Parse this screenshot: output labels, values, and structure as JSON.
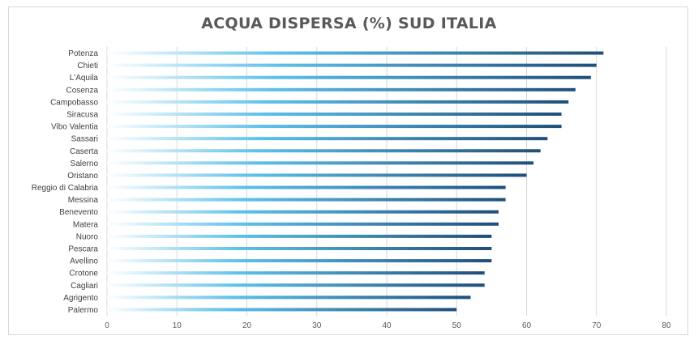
{
  "chart_data": {
    "type": "bar",
    "orientation": "horizontal",
    "title": "ACQUA DISPERSA (%) SUD ITALIA",
    "xlabel": "",
    "ylabel": "",
    "xlim": [
      0,
      80
    ],
    "x_ticks": [
      0,
      10,
      20,
      30,
      40,
      50,
      60,
      70,
      80
    ],
    "grid": "vertical",
    "legend": "none",
    "categories": [
      "Potenza",
      "Chieti",
      "L'Aquila",
      "Cosenza",
      "Campobasso",
      "Siracusa",
      "Vibo Valentia",
      "Sassari",
      "Caserta",
      "Salerno",
      "Oristano",
      "Reggio di Calabria",
      "Messina",
      "Benevento",
      "Matera",
      "Nuoro",
      "Pescara",
      "Avellino",
      "Crotone",
      "Cagliari",
      "Agrigento",
      "Palermo"
    ],
    "values": [
      71,
      70,
      69.2,
      67,
      66,
      65,
      65,
      63,
      62,
      61,
      60,
      57,
      57,
      56,
      56,
      55,
      55,
      55,
      54,
      54,
      52,
      50
    ],
    "bar_gradient": [
      "#ffffff",
      "#5bc0eb",
      "#1f4e79"
    ],
    "grid_color": "#d9d9d9"
  }
}
